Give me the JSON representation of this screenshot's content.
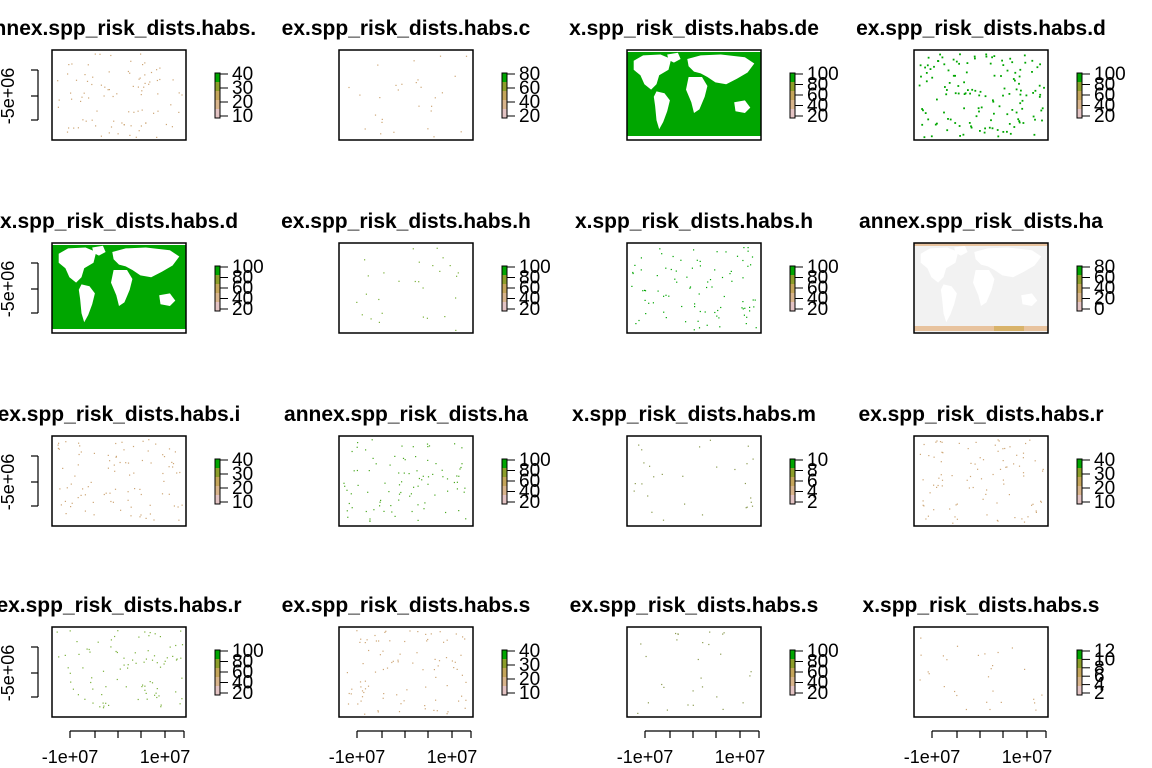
{
  "chart_data": {
    "type": "heatmap",
    "layout": {
      "rows": 4,
      "cols": 4
    },
    "x_tick_labels": [
      "-1e+07",
      "1e+07"
    ],
    "y_tick_labels": [
      "-5e+06"
    ],
    "legend_colors": [
      "#e3c3c3",
      "#d8b48b",
      "#c4a55a",
      "#8c9e2a",
      "#00a600"
    ],
    "panels": [
      {
        "title": "annex.spp_risk_dists.habs.",
        "fill": "sparse",
        "point_color": "#cda676",
        "legend_ticks": [
          "40",
          "30",
          "20",
          "10"
        ]
      },
      {
        "title": "ex.spp_risk_dists.habs.c",
        "fill": "sparse-light",
        "point_color": "#cda676",
        "legend_ticks": [
          "80",
          "60",
          "40",
          "20"
        ]
      },
      {
        "title": "x.spp_risk_dists.habs.de",
        "fill": "ocean",
        "point_color": "#00a600",
        "legend_ticks": [
          "100",
          "80",
          "60",
          "40",
          "20"
        ]
      },
      {
        "title": "ex.spp_risk_dists.habs.d",
        "fill": "coastal",
        "point_color": "#00a600",
        "legend_ticks": [
          "100",
          "80",
          "60",
          "40",
          "20"
        ]
      },
      {
        "title": "x.spp_risk_dists.habs.d",
        "fill": "ocean",
        "point_color": "#00a600",
        "legend_ticks": [
          "100",
          "80",
          "60",
          "40",
          "20"
        ]
      },
      {
        "title": "ex.spp_risk_dists.habs.h",
        "fill": "sparse-light",
        "point_color": "#7ab03a",
        "legend_ticks": [
          "100",
          "80",
          "60",
          "40",
          "20"
        ]
      },
      {
        "title": "x.spp_risk_dists.habs.h",
        "fill": "sparse-green",
        "point_color": "#00a600",
        "legend_ticks": [
          "100",
          "80",
          "60",
          "40",
          "20"
        ]
      },
      {
        "title": "annex.spp_risk_dists.ha",
        "fill": "ice",
        "point_color": "#f0f0f0",
        "legend_ticks": [
          "80",
          "60",
          "40",
          "20",
          "0"
        ]
      },
      {
        "title": "ex.spp_risk_dists.habs.i",
        "fill": "sparse",
        "point_color": "#cda676",
        "legend_ticks": [
          "40",
          "30",
          "20",
          "10"
        ]
      },
      {
        "title": "annex.spp_risk_dists.ha",
        "fill": "sparse-green",
        "point_color": "#4aa820",
        "legend_ticks": [
          "100",
          "80",
          "60",
          "40",
          "20"
        ]
      },
      {
        "title": "x.spp_risk_dists.habs.m",
        "fill": "sparse-light",
        "point_color": "#8a9a50",
        "legend_ticks": [
          "10",
          "8",
          "6",
          "4",
          "2"
        ]
      },
      {
        "title": "ex.spp_risk_dists.habs.r",
        "fill": "sparse",
        "point_color": "#cda676",
        "legend_ticks": [
          "40",
          "30",
          "20",
          "10"
        ]
      },
      {
        "title": "ex.spp_risk_dists.habs.r",
        "fill": "sparse-green",
        "point_color": "#7ab03a",
        "legend_ticks": [
          "100",
          "80",
          "60",
          "40",
          "20"
        ]
      },
      {
        "title": "ex.spp_risk_dists.habs.s",
        "fill": "sparse",
        "point_color": "#cda676",
        "legend_ticks": [
          "40",
          "30",
          "20",
          "10"
        ]
      },
      {
        "title": "ex.spp_risk_dists.habs.s",
        "fill": "sparse-light",
        "point_color": "#8a9a50",
        "legend_ticks": [
          "100",
          "80",
          "60",
          "40",
          "20"
        ]
      },
      {
        "title": "x.spp_risk_dists.habs.s",
        "fill": "sparse-light",
        "point_color": "#cda676",
        "legend_ticks": [
          "12",
          "10",
          "8",
          "6",
          "4",
          "2"
        ]
      }
    ]
  }
}
